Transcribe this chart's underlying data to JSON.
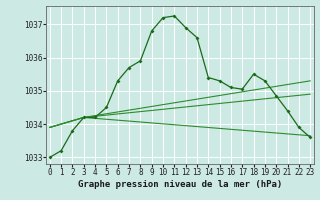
{
  "bg_color": "#cce9e4",
  "grid_color": "#ffffff",
  "line_color": "#1a6b1a",
  "line_color2": "#2d8c2d",
  "title": "Graphe pression niveau de la mer (hPa)",
  "ylim": [
    1032.8,
    1037.55
  ],
  "xlim": [
    -0.3,
    23.3
  ],
  "yticks": [
    1033,
    1034,
    1035,
    1036,
    1037
  ],
  "xticks": [
    0,
    1,
    2,
    3,
    4,
    5,
    6,
    7,
    8,
    9,
    10,
    11,
    12,
    13,
    14,
    15,
    16,
    17,
    18,
    19,
    20,
    21,
    22,
    23
  ],
  "line1_x": [
    0,
    1,
    2,
    3,
    4,
    5,
    6,
    7,
    8,
    9,
    10,
    11,
    12,
    13,
    14,
    15,
    16,
    17,
    18,
    19,
    20,
    21,
    22,
    23
  ],
  "line1_y": [
    1033.0,
    1033.2,
    1033.8,
    1034.2,
    1034.2,
    1034.5,
    1035.3,
    1035.7,
    1035.9,
    1036.8,
    1037.2,
    1037.25,
    1036.9,
    1036.6,
    1035.4,
    1035.3,
    1035.1,
    1035.05,
    1035.5,
    1035.3,
    1034.85,
    1034.4,
    1033.9,
    1033.6
  ],
  "line2_x": [
    0,
    3,
    23
  ],
  "line2_y": [
    1033.9,
    1034.2,
    1035.3
  ],
  "line3_x": [
    0,
    3,
    23
  ],
  "line3_y": [
    1033.9,
    1034.2,
    1034.9
  ],
  "line4_x": [
    0,
    3,
    23
  ],
  "line4_y": [
    1033.9,
    1034.2,
    1033.65
  ]
}
